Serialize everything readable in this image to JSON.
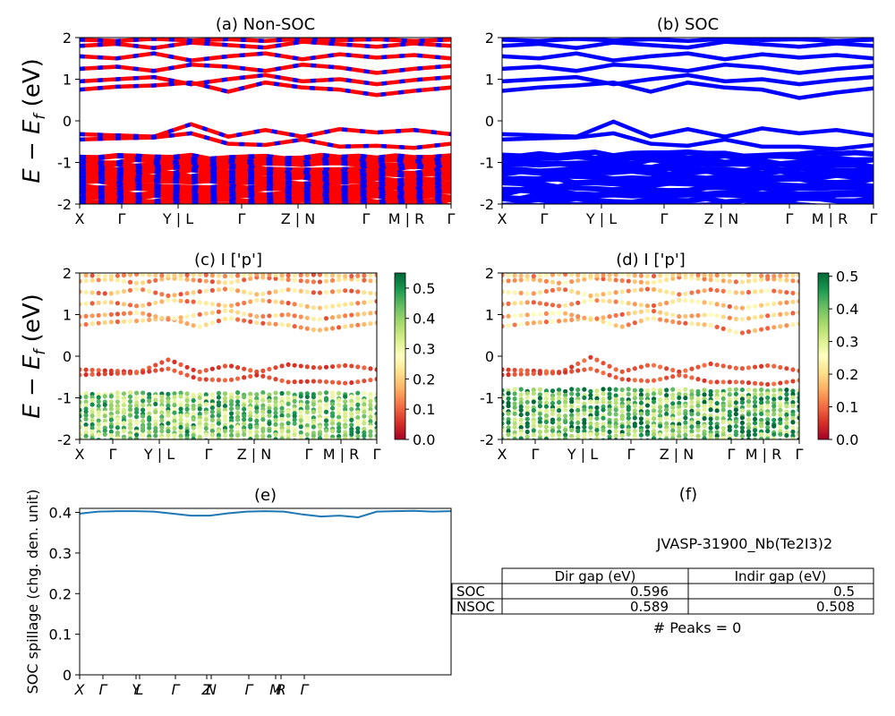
{
  "figure": {
    "ylabel_main": "E − E",
    "ylabel_sub": "f",
    "ylabel_unit": " (eV)"
  },
  "chart_data": [
    {
      "id": "a",
      "type": "line",
      "title": "(a) Non-SOC",
      "ylim": [
        -2,
        2
      ],
      "yticks": [
        2,
        1,
        0,
        -1,
        -2
      ],
      "xticks": [
        "X",
        "Γ",
        "Y | L",
        "Γ",
        "Z | N",
        "Γ",
        "M | R",
        "Γ"
      ],
      "series_colors": [
        "#ff0000",
        "#0000ff"
      ],
      "bands": [
        {
          "v": [
            -0.32,
            -0.35,
            -0.38,
            -0.08,
            -0.38,
            -0.22,
            -0.38,
            -0.2,
            -0.28,
            -0.22,
            -0.32
          ]
        },
        {
          "v": [
            -0.45,
            -0.42,
            -0.4,
            -0.3,
            -0.55,
            -0.58,
            -0.45,
            -0.62,
            -0.6,
            -0.65,
            -0.55
          ]
        },
        {
          "v": [
            0.75,
            0.82,
            0.85,
            0.92,
            0.7,
            0.92,
            0.8,
            0.75,
            0.62,
            0.72,
            0.8
          ]
        },
        {
          "v": [
            0.95,
            1.0,
            1.05,
            0.88,
            1.0,
            1.1,
            0.95,
            1.0,
            0.88,
            0.98,
            1.05
          ]
        },
        {
          "v": [
            1.25,
            1.3,
            1.2,
            1.35,
            1.3,
            1.2,
            1.35,
            1.28,
            1.15,
            1.25,
            1.32
          ]
        },
        {
          "v": [
            1.55,
            1.5,
            1.62,
            1.45,
            1.55,
            1.62,
            1.48,
            1.6,
            1.52,
            1.58,
            1.5
          ]
        },
        {
          "v": [
            1.8,
            1.85,
            1.75,
            1.88,
            1.82,
            1.76,
            1.9,
            1.84,
            1.78,
            1.86,
            1.8
          ]
        },
        {
          "v": [
            1.95,
            1.92,
            1.97,
            1.93,
            1.96,
            1.92,
            1.97,
            1.94,
            1.96,
            1.92,
            1.95
          ]
        }
      ],
      "dense_range": [
        -2,
        -0.88
      ]
    },
    {
      "id": "b",
      "type": "line",
      "title": "(b) SOC",
      "ylim": [
        -2,
        2
      ],
      "yticks": [
        2,
        1,
        0,
        -1,
        -2
      ],
      "xticks": [
        "X",
        "Γ",
        "Y | L",
        "Γ",
        "Z | N",
        "Γ",
        "M | R",
        "Γ"
      ],
      "series_colors": [
        "#0000ff"
      ],
      "bands": [
        {
          "v": [
            -0.32,
            -0.35,
            -0.38,
            -0.02,
            -0.38,
            -0.2,
            -0.38,
            -0.18,
            -0.3,
            -0.22,
            -0.35
          ]
        },
        {
          "v": [
            -0.45,
            -0.42,
            -0.4,
            -0.3,
            -0.55,
            -0.6,
            -0.45,
            -0.62,
            -0.62,
            -0.68,
            -0.58
          ]
        },
        {
          "v": [
            0.72,
            0.8,
            0.85,
            0.92,
            0.7,
            0.92,
            0.8,
            0.75,
            0.55,
            0.68,
            0.78
          ]
        },
        {
          "v": [
            0.95,
            1.0,
            1.05,
            0.88,
            1.0,
            1.1,
            0.95,
            1.0,
            0.88,
            0.98,
            1.05
          ]
        },
        {
          "v": [
            1.25,
            1.3,
            1.2,
            1.35,
            1.3,
            1.2,
            1.35,
            1.28,
            1.15,
            1.25,
            1.32
          ]
        },
        {
          "v": [
            1.55,
            1.5,
            1.62,
            1.45,
            1.55,
            1.62,
            1.48,
            1.6,
            1.52,
            1.58,
            1.5
          ]
        },
        {
          "v": [
            1.8,
            1.85,
            1.75,
            1.88,
            1.82,
            1.76,
            1.9,
            1.84,
            1.78,
            1.86,
            1.8
          ]
        },
        {
          "v": [
            1.95,
            1.92,
            1.97,
            1.93,
            1.96,
            1.92,
            1.97,
            1.94,
            1.96,
            1.92,
            1.95
          ]
        }
      ],
      "dense_range": [
        -2,
        -0.8
      ]
    },
    {
      "id": "c",
      "type": "scatter",
      "title": "(c)  I ['p']",
      "ylim": [
        -2,
        2
      ],
      "yticks": [
        2,
        1,
        0,
        -1,
        -2
      ],
      "xticks": [
        "X",
        "Γ",
        "Y | L",
        "Γ",
        "Z | N",
        "Γ",
        "M | R",
        "Γ"
      ],
      "colorbar": {
        "range": [
          0.0,
          0.55
        ],
        "ticks": [
          0.0,
          0.1,
          0.2,
          0.3,
          0.4,
          0.5
        ],
        "colormap": "RdYlGn"
      },
      "dense_range": [
        -2,
        -0.9
      ],
      "upper_range": [
        0.5,
        2
      ]
    },
    {
      "id": "d",
      "type": "scatter",
      "title": "(d) I ['p']",
      "ylim": [
        -2,
        2
      ],
      "yticks": [
        2,
        1,
        0,
        -1,
        -2
      ],
      "xticks": [
        "X",
        "Γ",
        "Y | L",
        "Γ",
        "Z | N",
        "Γ",
        "M | R",
        "Γ"
      ],
      "colorbar": {
        "range": [
          0.0,
          0.51
        ],
        "ticks": [
          0.0,
          0.1,
          0.2,
          0.3,
          0.4,
          0.5
        ],
        "colormap": "RdYlGn"
      },
      "dense_range": [
        -2,
        -0.82
      ],
      "upper_range": [
        0.5,
        2
      ]
    },
    {
      "id": "e",
      "type": "line",
      "title": "(e)",
      "ylabel": "SOC spillage (chg. den. unit)",
      "ylim": [
        0,
        0.41
      ],
      "yticks": [
        0.0,
        0.1,
        0.2,
        0.3,
        0.4
      ],
      "xticks": [
        "X",
        "Γ",
        "Y",
        "L",
        "Γ",
        "Z",
        "N",
        "Γ",
        "M",
        "R",
        "Γ"
      ],
      "x": [
        0,
        0.05,
        0.1,
        0.15,
        0.2,
        0.25,
        0.3,
        0.35,
        0.4,
        0.45,
        0.5,
        0.55,
        0.6,
        0.65,
        0.7,
        0.75,
        0.8,
        0.85,
        0.9,
        0.95,
        1.0
      ],
      "values": [
        0.397,
        0.402,
        0.403,
        0.403,
        0.402,
        0.397,
        0.392,
        0.392,
        0.398,
        0.402,
        0.403,
        0.402,
        0.395,
        0.39,
        0.392,
        0.388,
        0.402,
        0.403,
        0.404,
        0.402,
        0.403
      ],
      "color": "#1f77b4"
    },
    {
      "id": "f",
      "type": "table",
      "title": "(f)",
      "caption": "JVASP-31900_Nb(Te2I3)2",
      "columns": [
        "Dir gap (eV)",
        "Indir gap (eV)"
      ],
      "rows": [
        {
          "label": "SOC",
          "values": [
            "0.596",
            "0.5"
          ]
        },
        {
          "label": "NSOC",
          "values": [
            "0.589",
            "0.508"
          ]
        }
      ],
      "footer": "# Peaks = 0"
    }
  ]
}
